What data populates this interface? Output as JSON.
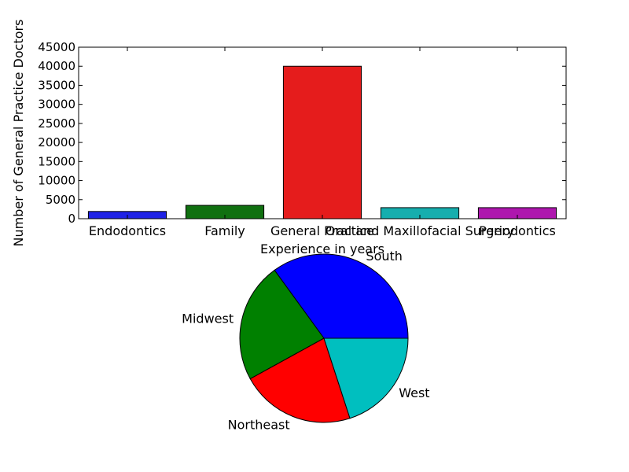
{
  "chart_data": [
    {
      "type": "bar",
      "categories": [
        "Endodontics",
        "Family",
        "General Practice",
        "Oral and Maxillofacial Surgery",
        "Periodontics"
      ],
      "values": [
        1900,
        3500,
        40000,
        2900,
        2900
      ],
      "colors": [
        "#1f22e6",
        "#107010",
        "#e51c1c",
        "#16aeae",
        "#ae16ae"
      ],
      "ylabel": "Number of General Practice Doctors",
      "xlabel": "Experience in years",
      "ylim": [
        0,
        45000
      ],
      "yticks": [
        0,
        5000,
        10000,
        15000,
        20000,
        25000,
        30000,
        35000,
        40000,
        45000
      ],
      "grid": false
    },
    {
      "type": "pie",
      "labels": [
        "South",
        "Midwest",
        "Northeast",
        "West"
      ],
      "values": [
        35,
        23,
        22,
        20
      ],
      "colors": [
        "#0000ff",
        "#008000",
        "#ff0000",
        "#00bfbf"
      ],
      "start_angle_deg": 0,
      "direction": "counterclockwise"
    }
  ]
}
